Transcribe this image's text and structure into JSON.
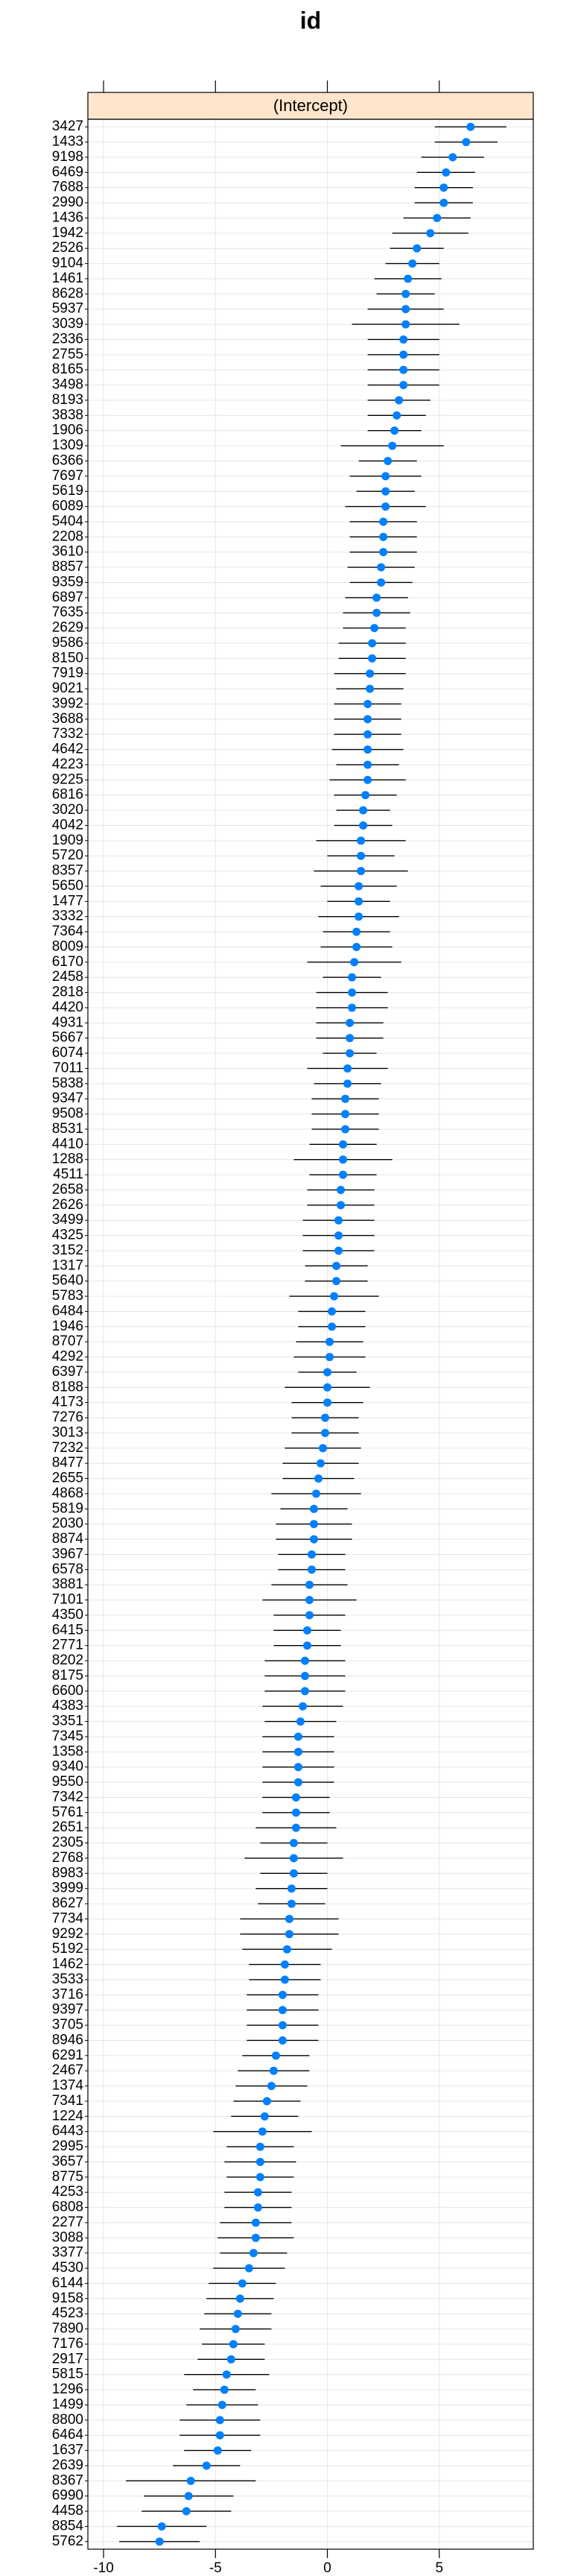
{
  "chart_data": {
    "type": "dotplot",
    "title": "id",
    "strip": "(Intercept)",
    "categories": [
      "3427",
      "1433",
      "9198",
      "6469",
      "7688",
      "2990",
      "1436",
      "1942",
      "2526",
      "9104",
      "1461",
      "8628",
      "5937",
      "3039",
      "2336",
      "2755",
      "8165",
      "3498",
      "8193",
      "3838",
      "1906",
      "1309",
      "6366",
      "7697",
      "5619",
      "6089",
      "5404",
      "2208",
      "3610",
      "8857",
      "9359",
      "6897",
      "7635",
      "2629",
      "9586",
      "8150",
      "7919",
      "9021",
      "3992",
      "3688",
      "7332",
      "4642",
      "4223",
      "9225",
      "6816",
      "3020",
      "4042",
      "1909",
      "5720",
      "8357",
      "5650",
      "1477",
      "3332",
      "7364",
      "8009",
      "6170",
      "2458",
      "2818",
      "4420",
      "4931",
      "5667",
      "6074",
      "7011",
      "5838",
      "9347",
      "9508",
      "8531",
      "4410",
      "1288",
      "4511",
      "2658",
      "2626",
      "3499",
      "4325",
      "3152",
      "1317",
      "5640",
      "5783",
      "6484",
      "1946",
      "8707",
      "4292",
      "6397",
      "8188",
      "4173",
      "7276",
      "3013",
      "7232",
      "8477",
      "2655",
      "4868",
      "5819",
      "2030",
      "8874",
      "3967",
      "6578",
      "3881",
      "7101",
      "4350",
      "6415",
      "2771",
      "8202",
      "8175",
      "6600",
      "4383",
      "3351",
      "7345",
      "1358",
      "9340",
      "9550",
      "7342",
      "5761",
      "2651",
      "2305",
      "2768",
      "8983",
      "3999",
      "8627",
      "7734",
      "9292",
      "5192",
      "1462",
      "3533",
      "3716",
      "9397",
      "3705",
      "8946",
      "6291",
      "2467",
      "1374",
      "7341",
      "1224",
      "6443",
      "2995",
      "3657",
      "8775",
      "4253",
      "6808",
      "2277",
      "3088",
      "3377",
      "4530",
      "6144",
      "9158",
      "4523",
      "7890",
      "7176",
      "2917",
      "5815",
      "1296",
      "1499",
      "8800",
      "6464",
      "1637",
      "2639",
      "8367",
      "6990",
      "4458",
      "8854",
      "5762"
    ],
    "values": [
      6.4,
      6.2,
      5.6,
      5.3,
      5.2,
      5.2,
      4.9,
      4.6,
      4.0,
      3.8,
      3.6,
      3.5,
      3.5,
      3.5,
      3.4,
      3.4,
      3.4,
      3.4,
      3.2,
      3.1,
      3.0,
      2.9,
      2.7,
      2.6,
      2.6,
      2.6,
      2.5,
      2.5,
      2.5,
      2.4,
      2.4,
      2.2,
      2.2,
      2.1,
      2.0,
      2.0,
      1.9,
      1.9,
      1.8,
      1.8,
      1.8,
      1.8,
      1.8,
      1.8,
      1.7,
      1.6,
      1.6,
      1.5,
      1.5,
      1.5,
      1.4,
      1.4,
      1.4,
      1.3,
      1.3,
      1.2,
      1.1,
      1.1,
      1.1,
      1.0,
      1.0,
      1.0,
      0.9,
      0.9,
      0.8,
      0.8,
      0.8,
      0.7,
      0.7,
      0.7,
      0.6,
      0.6,
      0.5,
      0.5,
      0.5,
      0.4,
      0.4,
      0.3,
      0.2,
      0.2,
      0.1,
      0.1,
      0.0,
      0.0,
      0.0,
      -0.1,
      -0.1,
      -0.2,
      -0.3,
      -0.4,
      -0.5,
      -0.6,
      -0.6,
      -0.6,
      -0.7,
      -0.7,
      -0.8,
      -0.8,
      -0.8,
      -0.9,
      -0.9,
      -1.0,
      -1.0,
      -1.0,
      -1.1,
      -1.2,
      -1.3,
      -1.3,
      -1.3,
      -1.3,
      -1.4,
      -1.4,
      -1.4,
      -1.5,
      -1.5,
      -1.5,
      -1.6,
      -1.6,
      -1.7,
      -1.7,
      -1.8,
      -1.9,
      -1.9,
      -2.0,
      -2.0,
      -2.0,
      -2.0,
      -2.3,
      -2.4,
      -2.5,
      -2.7,
      -2.8,
      -2.9,
      -3.0,
      -3.0,
      -3.0,
      -3.1,
      -3.1,
      -3.2,
      -3.2,
      -3.3,
      -3.5,
      -3.8,
      -3.9,
      -4.0,
      -4.1,
      -4.2,
      -4.3,
      -4.5,
      -4.6,
      -4.7,
      -4.8,
      -4.8,
      -4.9,
      -5.4,
      -6.1,
      -6.2,
      -6.3,
      -7.4,
      -7.5
    ],
    "errors": [
      1.6,
      1.4,
      1.4,
      1.3,
      1.3,
      1.3,
      1.5,
      1.7,
      1.2,
      1.2,
      1.5,
      1.3,
      1.7,
      2.4,
      1.6,
      1.6,
      1.6,
      1.6,
      1.4,
      1.3,
      1.2,
      2.3,
      1.3,
      1.6,
      1.3,
      1.8,
      1.5,
      1.5,
      1.5,
      1.5,
      1.4,
      1.4,
      1.5,
      1.4,
      1.5,
      1.5,
      1.6,
      1.5,
      1.5,
      1.5,
      1.5,
      1.6,
      1.4,
      1.7,
      1.4,
      1.2,
      1.3,
      2.0,
      1.5,
      2.1,
      1.7,
      1.4,
      1.8,
      1.5,
      1.6,
      2.1,
      1.3,
      1.6,
      1.6,
      1.5,
      1.5,
      1.2,
      1.8,
      1.5,
      1.5,
      1.5,
      1.5,
      1.5,
      2.2,
      1.5,
      1.5,
      1.5,
      1.6,
      1.6,
      1.6,
      1.4,
      1.4,
      2.0,
      1.5,
      1.5,
      1.5,
      1.6,
      1.3,
      1.9,
      1.6,
      1.5,
      1.5,
      1.7,
      1.7,
      1.6,
      2.0,
      1.5,
      1.7,
      1.7,
      1.5,
      1.5,
      1.7,
      2.1,
      1.6,
      1.5,
      1.5,
      1.8,
      1.8,
      1.8,
      1.8,
      1.6,
      1.6,
      1.6,
      1.6,
      1.6,
      1.5,
      1.5,
      1.8,
      1.5,
      2.2,
      1.5,
      1.6,
      1.5,
      2.2,
      2.2,
      2.0,
      1.6,
      1.6,
      1.6,
      1.6,
      1.6,
      1.6,
      1.5,
      1.6,
      1.6,
      1.5,
      1.5,
      2.2,
      1.5,
      1.6,
      1.5,
      1.5,
      1.5,
      1.6,
      1.7,
      1.5,
      1.6,
      1.5,
      1.5,
      1.5,
      1.6,
      1.4,
      1.5,
      1.9,
      1.4,
      1.6,
      1.8,
      1.8,
      1.5,
      1.5,
      2.9,
      2.0,
      2.0,
      2.0,
      1.8
    ],
    "xlim": [
      -10.7,
      9.2
    ],
    "xticks": [
      -10,
      -5,
      0,
      5
    ],
    "color": "#0080ff",
    "grid": true
  }
}
